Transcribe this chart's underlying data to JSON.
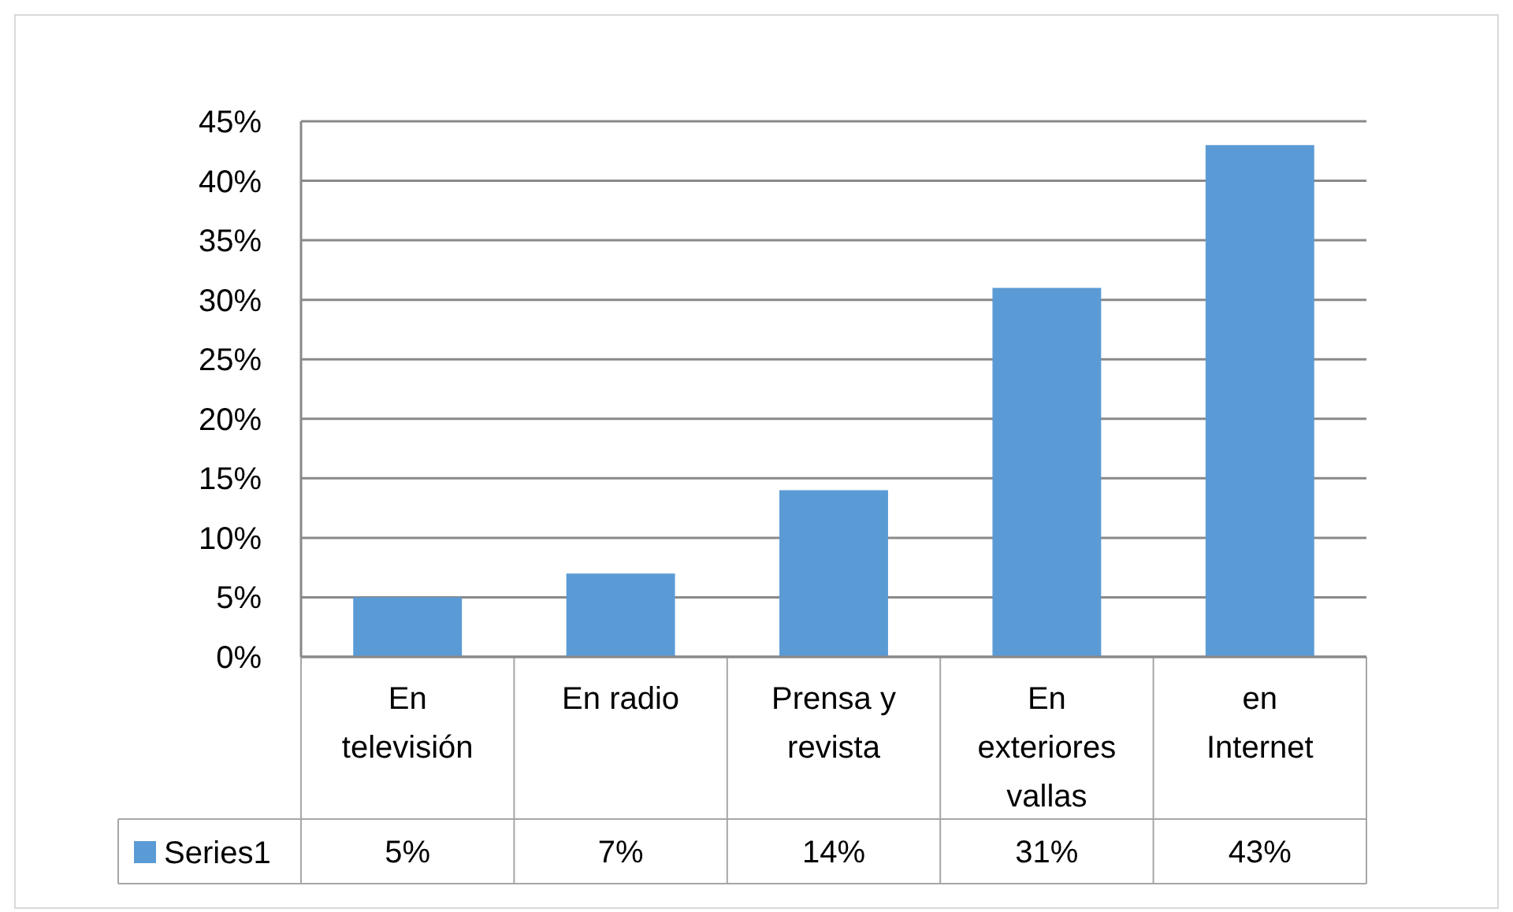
{
  "chart_data": {
    "type": "bar",
    "categories": [
      "En televisión",
      "En radio",
      "Prensa y revista",
      "En exteriores vallas",
      "en Internet"
    ],
    "series": [
      {
        "name": "Series1",
        "color": "#5b9bd5",
        "values": [
          5,
          7,
          14,
          31,
          43
        ],
        "value_labels": [
          "5%",
          "7%",
          "14%",
          "31%",
          "43%"
        ]
      }
    ],
    "ylim": [
      0,
      45
    ],
    "yticks": [
      {
        "value": 0,
        "label": "0%"
      },
      {
        "value": 5,
        "label": "5%"
      },
      {
        "value": 10,
        "label": "10%"
      },
      {
        "value": 15,
        "label": "15%"
      },
      {
        "value": 20,
        "label": "20%"
      },
      {
        "value": 25,
        "label": "25%"
      },
      {
        "value": 30,
        "label": "30%"
      },
      {
        "value": 35,
        "label": "35%"
      },
      {
        "value": 40,
        "label": "40%"
      },
      {
        "value": 45,
        "label": "45%"
      }
    ],
    "grid": "y",
    "legend": "bottom left"
  }
}
